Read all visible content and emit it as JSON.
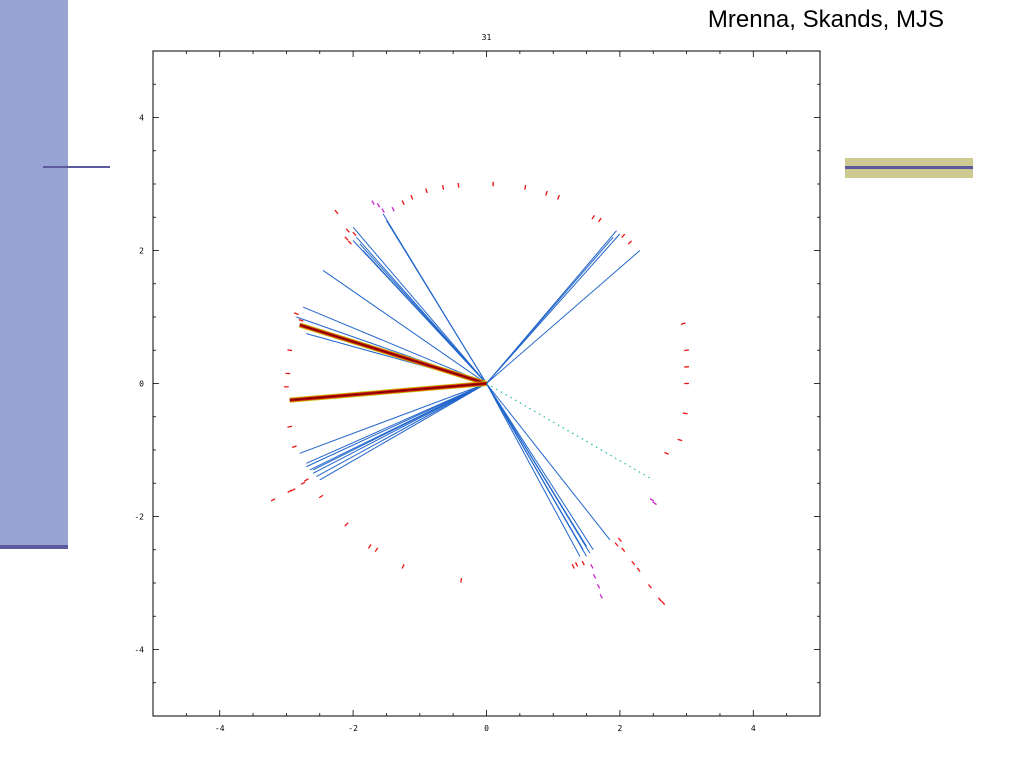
{
  "header": {
    "authors": "Mrenna, Skands, MJS"
  },
  "colors": {
    "sidebar": "#97a4d4",
    "sidebar_rule": "#5c5a9c",
    "accent_box": "#cdc993",
    "track_blue": "#2266cc",
    "jet_red": "#cc1111",
    "jet_core": "#7a0000",
    "jet_outline": "#c8b800",
    "hit_red": "#ee1111",
    "hit_magenta": "#cc22cc",
    "missing_cyan": "#22bbaa"
  },
  "chart_data": {
    "type": "scatter",
    "title": "31",
    "xlabel": "",
    "ylabel": "",
    "xlim": [
      -5,
      5
    ],
    "ylim": [
      -5,
      5
    ],
    "xticks": [
      -4,
      -2,
      0,
      2,
      4
    ],
    "yticks": [
      -4,
      -2,
      0,
      2,
      4
    ],
    "x_tick_labels": [
      "-4",
      "-2",
      "0",
      "2",
      "4"
    ],
    "y_tick_labels": [
      "-4",
      "-2",
      "0",
      "2",
      "4"
    ],
    "grid": false,
    "tracks": [
      [
        -2.0,
        2.15
      ],
      [
        -1.95,
        2.2
      ],
      [
        -1.9,
        2.1
      ],
      [
        -1.85,
        2.0
      ],
      [
        -2.0,
        2.35
      ],
      [
        -1.55,
        2.55
      ],
      [
        -1.5,
        2.45
      ],
      [
        -2.45,
        1.7
      ],
      [
        -2.75,
        1.15
      ],
      [
        -2.85,
        1.0
      ],
      [
        -2.8,
        0.9
      ],
      [
        -2.7,
        0.75
      ],
      [
        1.95,
        2.3
      ],
      [
        1.9,
        2.2
      ],
      [
        2.0,
        2.25
      ],
      [
        2.3,
        2.0
      ],
      [
        -2.8,
        -1.05
      ],
      [
        -2.7,
        -1.25
      ],
      [
        -2.65,
        -1.3
      ],
      [
        -2.6,
        -1.35
      ],
      [
        -2.55,
        -1.4
      ],
      [
        -2.5,
        -1.45
      ],
      [
        -2.7,
        -1.2
      ],
      [
        -2.6,
        -1.3
      ],
      [
        1.5,
        -2.6
      ],
      [
        1.55,
        -2.55
      ],
      [
        1.45,
        -2.5
      ],
      [
        1.6,
        -2.5
      ],
      [
        1.4,
        -2.6
      ],
      [
        1.5,
        -2.45
      ],
      [
        1.85,
        -2.35
      ]
    ],
    "jets": [
      [
        -2.8,
        0.88
      ],
      [
        -2.95,
        -0.25
      ]
    ],
    "missing_energy": [
      2.5,
      -1.45
    ],
    "hits_red": [
      [
        -2.25,
        2.58
      ],
      [
        -2.08,
        2.3
      ],
      [
        -1.98,
        2.25
      ],
      [
        -2.1,
        2.18
      ],
      [
        -2.05,
        2.12
      ],
      [
        -1.25,
        2.72
      ],
      [
        -1.12,
        2.8
      ],
      [
        -0.9,
        2.9
      ],
      [
        -0.65,
        2.95
      ],
      [
        -0.42,
        2.98
      ],
      [
        0.1,
        3.0
      ],
      [
        0.58,
        2.95
      ],
      [
        0.9,
        2.86
      ],
      [
        1.08,
        2.8
      ],
      [
        1.6,
        2.5
      ],
      [
        1.7,
        2.46
      ],
      [
        2.05,
        2.22
      ],
      [
        2.15,
        2.12
      ],
      [
        2.95,
        0.9
      ],
      [
        3.0,
        0.5
      ],
      [
        3.0,
        0.25
      ],
      [
        3.0,
        0.0
      ],
      [
        2.98,
        -0.45
      ],
      [
        2.9,
        -0.85
      ],
      [
        2.7,
        -1.05
      ],
      [
        -2.85,
        1.05
      ],
      [
        -2.78,
        0.95
      ],
      [
        -2.95,
        0.5
      ],
      [
        -2.98,
        0.15
      ],
      [
        -3.0,
        -0.05
      ],
      [
        -2.95,
        -0.65
      ],
      [
        -2.88,
        -0.95
      ],
      [
        -3.2,
        -1.75
      ],
      [
        -2.95,
        -1.62
      ],
      [
        -2.9,
        -1.6
      ],
      [
        -2.75,
        -1.5
      ],
      [
        -2.7,
        -1.45
      ],
      [
        -2.48,
        -1.7
      ],
      [
        -2.1,
        -2.12
      ],
      [
        -1.75,
        -2.45
      ],
      [
        -1.65,
        -2.5
      ],
      [
        -1.25,
        -2.75
      ],
      [
        -0.38,
        -2.96
      ],
      [
        1.3,
        -2.75
      ],
      [
        1.35,
        -2.72
      ],
      [
        1.45,
        -2.7
      ],
      [
        1.95,
        -2.42
      ],
      [
        2.0,
        -2.35
      ],
      [
        2.05,
        -2.5
      ],
      [
        2.2,
        -2.7
      ],
      [
        2.28,
        -2.8
      ],
      [
        2.45,
        -3.05
      ],
      [
        2.6,
        -3.25
      ],
      [
        2.65,
        -3.3
      ]
    ],
    "hits_magenta": [
      [
        -1.62,
        2.68
      ],
      [
        -1.7,
        2.72
      ],
      [
        -1.55,
        2.6
      ],
      [
        -1.4,
        2.62
      ],
      [
        1.58,
        -2.75
      ],
      [
        1.62,
        -2.9
      ],
      [
        1.68,
        -3.05
      ],
      [
        1.72,
        -3.2
      ],
      [
        2.48,
        -1.75
      ],
      [
        2.52,
        -1.8
      ]
    ]
  }
}
